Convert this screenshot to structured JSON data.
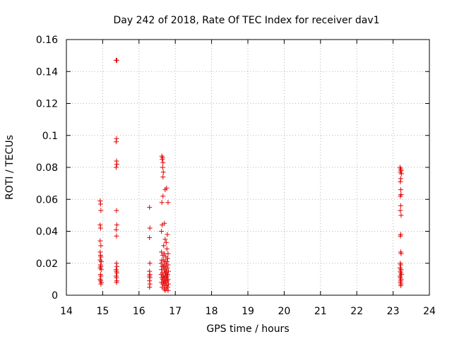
{
  "chart_data": {
    "type": "scatter",
    "title": "Day 242 of 2018, Rate Of TEC Index for receiver dav1",
    "xlabel": "GPS time / hours",
    "ylabel": "ROTI / TECUs",
    "xlim": [
      14,
      24
    ],
    "ylim": [
      0,
      0.16
    ],
    "x_ticks": [
      "14",
      "15",
      "16",
      "17",
      "18",
      "19",
      "20",
      "21",
      "22",
      "23",
      "24"
    ],
    "y_ticks": [
      "0",
      "0.02",
      "0.04",
      "0.06",
      "0.08",
      "0.1",
      "0.12",
      "0.14",
      "0.16"
    ],
    "grid": true,
    "marker": "plus",
    "color": "#e00000",
    "series": [
      {
        "points": [
          [
            14.93,
            0.059
          ],
          [
            14.94,
            0.057
          ],
          [
            14.95,
            0.053
          ],
          [
            14.93,
            0.044
          ],
          [
            14.94,
            0.042
          ],
          [
            14.93,
            0.034
          ],
          [
            14.95,
            0.031
          ],
          [
            14.93,
            0.027
          ],
          [
            14.94,
            0.025
          ],
          [
            14.95,
            0.024
          ],
          [
            14.93,
            0.022
          ],
          [
            14.96,
            0.021
          ],
          [
            14.94,
            0.019
          ],
          [
            14.95,
            0.018
          ],
          [
            14.93,
            0.017
          ],
          [
            14.96,
            0.016
          ],
          [
            14.94,
            0.013
          ],
          [
            14.95,
            0.012
          ],
          [
            14.93,
            0.01
          ],
          [
            14.94,
            0.009
          ],
          [
            14.96,
            0.008
          ],
          [
            14.95,
            0.007
          ],
          [
            15.37,
            0.147
          ],
          [
            15.39,
            0.147
          ],
          [
            15.38,
            0.098
          ],
          [
            15.37,
            0.096
          ],
          [
            15.38,
            0.084
          ],
          [
            15.39,
            0.082
          ],
          [
            15.37,
            0.08
          ],
          [
            15.38,
            0.053
          ],
          [
            15.39,
            0.044
          ],
          [
            15.37,
            0.041
          ],
          [
            15.38,
            0.037
          ],
          [
            15.38,
            0.02
          ],
          [
            15.39,
            0.018
          ],
          [
            15.37,
            0.016
          ],
          [
            15.38,
            0.015
          ],
          [
            15.39,
            0.014
          ],
          [
            15.37,
            0.012
          ],
          [
            15.38,
            0.011
          ],
          [
            15.39,
            0.009
          ],
          [
            15.38,
            0.008
          ],
          [
            16.29,
            0.055
          ],
          [
            16.3,
            0.042
          ],
          [
            16.29,
            0.036
          ],
          [
            16.3,
            0.02
          ],
          [
            16.29,
            0.015
          ],
          [
            16.3,
            0.013
          ],
          [
            16.29,
            0.012
          ],
          [
            16.3,
            0.011
          ],
          [
            16.29,
            0.009
          ],
          [
            16.3,
            0.007
          ],
          [
            16.29,
            0.005
          ],
          [
            16.63,
            0.087
          ],
          [
            16.65,
            0.086
          ],
          [
            16.64,
            0.085
          ],
          [
            16.66,
            0.083
          ],
          [
            16.65,
            0.08
          ],
          [
            16.67,
            0.077
          ],
          [
            16.66,
            0.074
          ],
          [
            16.76,
            0.067
          ],
          [
            16.72,
            0.066
          ],
          [
            16.66,
            0.062
          ],
          [
            16.63,
            0.058
          ],
          [
            16.8,
            0.058
          ],
          [
            16.7,
            0.045
          ],
          [
            16.64,
            0.044
          ],
          [
            16.62,
            0.04
          ],
          [
            16.78,
            0.038
          ],
          [
            16.72,
            0.035
          ],
          [
            16.75,
            0.033
          ],
          [
            16.68,
            0.031
          ],
          [
            16.77,
            0.029
          ],
          [
            16.62,
            0.027
          ],
          [
            16.7,
            0.026
          ],
          [
            16.8,
            0.026
          ],
          [
            16.66,
            0.025
          ],
          [
            16.74,
            0.024
          ],
          [
            16.79,
            0.023
          ],
          [
            16.63,
            0.022
          ],
          [
            16.68,
            0.022
          ],
          [
            16.72,
            0.021
          ],
          [
            16.77,
            0.021
          ],
          [
            16.61,
            0.02
          ],
          [
            16.7,
            0.019
          ],
          [
            16.75,
            0.019
          ],
          [
            16.8,
            0.019
          ],
          [
            16.64,
            0.018
          ],
          [
            16.67,
            0.018
          ],
          [
            16.73,
            0.017
          ],
          [
            16.78,
            0.017
          ],
          [
            16.62,
            0.016
          ],
          [
            16.69,
            0.016
          ],
          [
            16.76,
            0.015
          ],
          [
            16.81,
            0.015
          ],
          [
            16.65,
            0.014
          ],
          [
            16.71,
            0.014
          ],
          [
            16.74,
            0.014
          ],
          [
            16.79,
            0.013
          ],
          [
            16.61,
            0.013
          ],
          [
            16.67,
            0.012
          ],
          [
            16.72,
            0.012
          ],
          [
            16.77,
            0.012
          ],
          [
            16.63,
            0.011
          ],
          [
            16.69,
            0.011
          ],
          [
            16.75,
            0.011
          ],
          [
            16.8,
            0.01
          ],
          [
            16.65,
            0.01
          ],
          [
            16.7,
            0.009
          ],
          [
            16.73,
            0.009
          ],
          [
            16.78,
            0.009
          ],
          [
            16.62,
            0.008
          ],
          [
            16.68,
            0.008
          ],
          [
            16.74,
            0.008
          ],
          [
            16.81,
            0.007
          ],
          [
            16.66,
            0.007
          ],
          [
            16.71,
            0.006
          ],
          [
            16.76,
            0.006
          ],
          [
            16.64,
            0.005
          ],
          [
            16.79,
            0.005
          ],
          [
            16.69,
            0.004
          ],
          [
            16.75,
            0.004
          ],
          [
            16.8,
            0.003
          ],
          [
            16.72,
            0.003
          ],
          [
            23.19,
            0.08
          ],
          [
            23.21,
            0.079
          ],
          [
            23.22,
            0.078
          ],
          [
            23.2,
            0.077
          ],
          [
            23.23,
            0.076
          ],
          [
            23.21,
            0.073
          ],
          [
            23.2,
            0.071
          ],
          [
            23.21,
            0.066
          ],
          [
            23.22,
            0.063
          ],
          [
            23.2,
            0.062
          ],
          [
            23.21,
            0.056
          ],
          [
            23.2,
            0.053
          ],
          [
            23.22,
            0.05
          ],
          [
            23.21,
            0.038
          ],
          [
            23.2,
            0.037
          ],
          [
            23.21,
            0.027
          ],
          [
            23.22,
            0.026
          ],
          [
            23.2,
            0.02
          ],
          [
            23.21,
            0.019
          ],
          [
            23.19,
            0.017
          ],
          [
            23.22,
            0.016
          ],
          [
            23.2,
            0.015
          ],
          [
            23.21,
            0.014
          ],
          [
            23.23,
            0.013
          ],
          [
            23.19,
            0.012
          ],
          [
            23.2,
            0.011
          ],
          [
            23.22,
            0.01
          ],
          [
            23.21,
            0.009
          ],
          [
            23.2,
            0.008
          ],
          [
            23.22,
            0.007
          ],
          [
            23.21,
            0.006
          ]
        ]
      }
    ]
  }
}
